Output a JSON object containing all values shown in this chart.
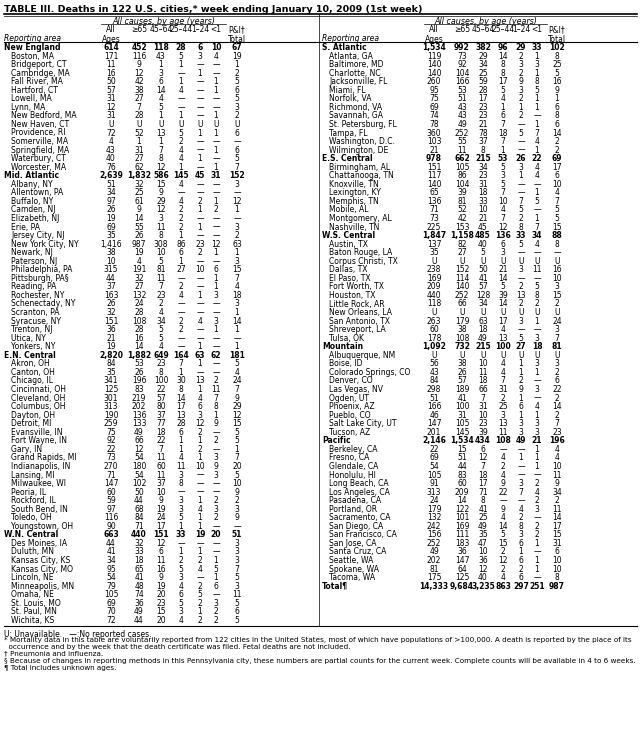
{
  "title": "TABLE III. Deaths in 122 U.S. cities,* week ending January 10, 2009 (1st week)",
  "footnotes": [
    "U: Unavailable.   —:No reported cases.",
    "* Mortality data in this table are voluntarily reported from 122 cities in the United States, most of which have populations of >100,000. A death is reported by the place of its",
    "  occurrence and by the week that the death certificate was filed. Fetal deaths are not included.",
    "† Pneumonia and influenza.",
    "§ Because of changes in reporting methods in this Pennsylvania city, these numbers are partial counts for the current week. Complete counts will be available in 4 to 6 weeks.",
    "¶ Total includes unknown ages."
  ],
  "left_data": [
    [
      "New England",
      "614",
      "452",
      "118",
      "28",
      "6",
      "10",
      "67",
      true
    ],
    [
      "Boston, MA",
      "171",
      "116",
      "43",
      "5",
      "3",
      "4",
      "19",
      false
    ],
    [
      "Bridgeport, CT",
      "11",
      "9",
      "1",
      "1",
      "—",
      "—",
      "1",
      false
    ],
    [
      "Cambridge, MA",
      "16",
      "12",
      "3",
      "—",
      "1",
      "—",
      "2",
      false
    ],
    [
      "Fall River, MA",
      "50",
      "42",
      "6",
      "1",
      "—",
      "1",
      "5",
      false
    ],
    [
      "Hartford, CT",
      "57",
      "38",
      "14",
      "4",
      "—",
      "1",
      "6",
      false
    ],
    [
      "Lowell, MA",
      "31",
      "27",
      "4",
      "—",
      "—",
      "—",
      "5",
      false
    ],
    [
      "Lynn, MA",
      "12",
      "7",
      "5",
      "—",
      "—",
      "—",
      "3",
      false
    ],
    [
      "New Bedford, MA",
      "31",
      "28",
      "1",
      "1",
      "—",
      "1",
      "2",
      false
    ],
    [
      "New Haven, CT",
      "U",
      "U",
      "U",
      "U",
      "U",
      "U",
      "U",
      false
    ],
    [
      "Providence, RI",
      "72",
      "52",
      "13",
      "5",
      "1",
      "1",
      "6",
      false
    ],
    [
      "Somerville, MA",
      "4",
      "1",
      "1",
      "2",
      "—",
      "—",
      "—",
      false
    ],
    [
      "Springfield, MA",
      "43",
      "31",
      "7",
      "4",
      "—",
      "1",
      "6",
      false
    ],
    [
      "Waterbury, CT",
      "40",
      "27",
      "8",
      "4",
      "1",
      "—",
      "5",
      false
    ],
    [
      "Worcester, MA",
      "76",
      "62",
      "12",
      "1",
      "—",
      "1",
      "7",
      false
    ],
    [
      "Mid. Atlantic",
      "2,639",
      "1,832",
      "586",
      "145",
      "45",
      "31",
      "152",
      true
    ],
    [
      "Albany, NY",
      "51",
      "32",
      "15",
      "4",
      "—",
      "—",
      "3",
      false
    ],
    [
      "Allentown, PA",
      "34",
      "25",
      "9",
      "—",
      "—",
      "—",
      "—",
      false
    ],
    [
      "Buffalo, NY",
      "97",
      "61",
      "29",
      "4",
      "2",
      "1",
      "12",
      false
    ],
    [
      "Camden, NJ",
      "26",
      "9",
      "12",
      "2",
      "1",
      "2",
      "1",
      false
    ],
    [
      "Elizabeth, NJ",
      "19",
      "14",
      "3",
      "2",
      "—",
      "—",
      "—",
      false
    ],
    [
      "Erie, PA",
      "69",
      "55",
      "11",
      "2",
      "1",
      "—",
      "3",
      false
    ],
    [
      "Jersey City, NJ",
      "35",
      "26",
      "8",
      "1",
      "—",
      "—",
      "2",
      false
    ],
    [
      "New York City, NY",
      "1,416",
      "987",
      "308",
      "86",
      "23",
      "12",
      "63",
      false
    ],
    [
      "Newark, NJ",
      "38",
      "19",
      "10",
      "6",
      "2",
      "1",
      "1",
      false
    ],
    [
      "Paterson, NJ",
      "10",
      "4",
      "5",
      "1",
      "—",
      "—",
      "3",
      false
    ],
    [
      "Philadelphia, PA",
      "315",
      "191",
      "81",
      "27",
      "10",
      "6",
      "15",
      false
    ],
    [
      "Pittsburgh, PA§",
      "44",
      "32",
      "11",
      "—",
      "—",
      "1",
      "7",
      false
    ],
    [
      "Reading, PA",
      "37",
      "27",
      "7",
      "2",
      "—",
      "1",
      "4",
      false
    ],
    [
      "Rochester, NY",
      "163",
      "132",
      "23",
      "4",
      "1",
      "3",
      "18",
      false
    ],
    [
      "Schenectady, NY",
      "26",
      "24",
      "2",
      "—",
      "—",
      "—",
      "3",
      false
    ],
    [
      "Scranton, PA",
      "32",
      "28",
      "4",
      "—",
      "—",
      "—",
      "1",
      false
    ],
    [
      "Syracuse, NY",
      "151",
      "108",
      "34",
      "2",
      "4",
      "3",
      "14",
      false
    ],
    [
      "Trenton, NJ",
      "36",
      "28",
      "5",
      "2",
      "—",
      "1",
      "1",
      false
    ],
    [
      "Utica, NY",
      "21",
      "16",
      "5",
      "—",
      "—",
      "—",
      "—",
      false
    ],
    [
      "Yonkers, NY",
      "19",
      "14",
      "4",
      "—",
      "1",
      "—",
      "1",
      false
    ],
    [
      "E.N. Central",
      "2,820",
      "1,882",
      "649",
      "164",
      "63",
      "62",
      "181",
      true
    ],
    [
      "Akron, OH",
      "84",
      "53",
      "23",
      "7",
      "1",
      "—",
      "5",
      false
    ],
    [
      "Canton, OH",
      "35",
      "26",
      "8",
      "1",
      "—",
      "—",
      "4",
      false
    ],
    [
      "Chicago, IL",
      "341",
      "196",
      "100",
      "30",
      "13",
      "2",
      "24",
      false
    ],
    [
      "Cincinnati, OH",
      "125",
      "83",
      "22",
      "8",
      "1",
      "11",
      "7",
      false
    ],
    [
      "Cleveland, OH",
      "301",
      "219",
      "57",
      "14",
      "4",
      "7",
      "9",
      false
    ],
    [
      "Columbus, OH",
      "313",
      "202",
      "80",
      "17",
      "6",
      "8",
      "29",
      false
    ],
    [
      "Dayton, OH",
      "190",
      "136",
      "37",
      "13",
      "3",
      "1",
      "12",
      false
    ],
    [
      "Detroit, MI",
      "259",
      "133",
      "77",
      "28",
      "12",
      "9",
      "15",
      false
    ],
    [
      "Evansville, IN",
      "75",
      "49",
      "18",
      "6",
      "2",
      "—",
      "5",
      false
    ],
    [
      "Fort Wayne, IN",
      "92",
      "66",
      "22",
      "1",
      "1",
      "2",
      "5",
      false
    ],
    [
      "Gary, IN",
      "22",
      "12",
      "7",
      "1",
      "2",
      "—",
      "1",
      false
    ],
    [
      "Grand Rapids, MI",
      "73",
      "54",
      "11",
      "4",
      "1",
      "3",
      "7",
      false
    ],
    [
      "Indianapolis, IN",
      "270",
      "180",
      "60",
      "11",
      "10",
      "9",
      "20",
      false
    ],
    [
      "Lansing, MI",
      "71",
      "54",
      "11",
      "3",
      "—",
      "3",
      "5",
      false
    ],
    [
      "Milwaukee, WI",
      "147",
      "102",
      "37",
      "8",
      "—",
      "—",
      "10",
      false
    ],
    [
      "Peoria, IL",
      "60",
      "50",
      "10",
      "—",
      "—",
      "—",
      "9",
      false
    ],
    [
      "Rockford, IL",
      "59",
      "44",
      "9",
      "3",
      "1",
      "2",
      "2",
      false
    ],
    [
      "South Bend, IN",
      "97",
      "68",
      "19",
      "3",
      "4",
      "3",
      "3",
      false
    ],
    [
      "Toledo, OH",
      "116",
      "84",
      "24",
      "5",
      "1",
      "2",
      "9",
      false
    ],
    [
      "Youngstown, OH",
      "90",
      "71",
      "17",
      "1",
      "1",
      "—",
      "—",
      false
    ],
    [
      "W.N. Central",
      "663",
      "440",
      "151",
      "33",
      "19",
      "20",
      "51",
      true
    ],
    [
      "Des Moines, IA",
      "44",
      "32",
      "12",
      "—",
      "—",
      "—",
      "3",
      false
    ],
    [
      "Duluth, MN",
      "41",
      "33",
      "6",
      "1",
      "1",
      "—",
      "3",
      false
    ],
    [
      "Kansas City, KS",
      "34",
      "18",
      "11",
      "2",
      "2",
      "1",
      "3",
      false
    ],
    [
      "Kansas City, MO",
      "95",
      "65",
      "16",
      "5",
      "4",
      "5",
      "7",
      false
    ],
    [
      "Lincoln, NE",
      "54",
      "41",
      "9",
      "3",
      "—",
      "1",
      "5",
      false
    ],
    [
      "Minneapolis, MN",
      "79",
      "48",
      "19",
      "4",
      "2",
      "6",
      "3",
      false
    ],
    [
      "Omaha, NE",
      "105",
      "74",
      "20",
      "6",
      "5",
      "—",
      "11",
      false
    ],
    [
      "St. Louis, MO",
      "69",
      "36",
      "23",
      "5",
      "2",
      "3",
      "5",
      false
    ],
    [
      "St. Paul, MN",
      "70",
      "49",
      "15",
      "3",
      "1",
      "2",
      "6",
      false
    ],
    [
      "Wichita, KS",
      "72",
      "44",
      "20",
      "4",
      "2",
      "2",
      "5",
      false
    ]
  ],
  "right_data": [
    [
      "S. Atlantic",
      "1,534",
      "992",
      "382",
      "96",
      "29",
      "33",
      "102",
      true
    ],
    [
      "Atlanta, GA",
      "119",
      "73",
      "29",
      "14",
      "2",
      "1",
      "8",
      false
    ],
    [
      "Baltimore, MD",
      "140",
      "92",
      "34",
      "8",
      "3",
      "3",
      "25",
      false
    ],
    [
      "Charlotte, NC",
      "140",
      "104",
      "25",
      "8",
      "2",
      "1",
      "5",
      false
    ],
    [
      "Jacksonville, FL",
      "260",
      "166",
      "59",
      "17",
      "9",
      "8",
      "16",
      false
    ],
    [
      "Miami, FL",
      "95",
      "53",
      "28",
      "5",
      "3",
      "5",
      "9",
      false
    ],
    [
      "Norfolk, VA",
      "75",
      "51",
      "17",
      "4",
      "2",
      "1",
      "1",
      false
    ],
    [
      "Richmond, VA",
      "69",
      "43",
      "23",
      "1",
      "1",
      "1",
      "6",
      false
    ],
    [
      "Savannah, GA",
      "74",
      "43",
      "23",
      "6",
      "2",
      "—",
      "8",
      false
    ],
    [
      "St. Petersburg, FL",
      "78",
      "49",
      "21",
      "7",
      "—",
      "1",
      "6",
      false
    ],
    [
      "Tampa, FL",
      "360",
      "252",
      "78",
      "18",
      "5",
      "7",
      "14",
      false
    ],
    [
      "Washington, D.C.",
      "103",
      "55",
      "37",
      "7",
      "—",
      "4",
      "2",
      false
    ],
    [
      "Wilmington, DE",
      "21",
      "11",
      "8",
      "1",
      "—",
      "1",
      "2",
      false
    ],
    [
      "E.S. Central",
      "978",
      "662",
      "215",
      "53",
      "26",
      "22",
      "69",
      true
    ],
    [
      "Birmingham, AL",
      "151",
      "105",
      "34",
      "5",
      "3",
      "4",
      "17",
      false
    ],
    [
      "Chattanooga, TN",
      "117",
      "86",
      "23",
      "3",
      "1",
      "4",
      "6",
      false
    ],
    [
      "Knoxville, TN",
      "140",
      "104",
      "31",
      "5",
      "—",
      "—",
      "10",
      false
    ],
    [
      "Lexington, KY",
      "65",
      "39",
      "18",
      "7",
      "—",
      "1",
      "4",
      false
    ],
    [
      "Memphis, TN",
      "136",
      "81",
      "33",
      "10",
      "7",
      "5",
      "7",
      false
    ],
    [
      "Mobile, AL",
      "71",
      "52",
      "10",
      "4",
      "5",
      "—",
      "5",
      false
    ],
    [
      "Montgomery, AL",
      "73",
      "42",
      "21",
      "7",
      "2",
      "1",
      "5",
      false
    ],
    [
      "Nashville, TN",
      "225",
      "153",
      "45",
      "12",
      "8",
      "7",
      "15",
      false
    ],
    [
      "W.S. Central",
      "1,847",
      "1,158",
      "485",
      "136",
      "33",
      "34",
      "88",
      true
    ],
    [
      "Austin, TX",
      "137",
      "82",
      "40",
      "6",
      "5",
      "4",
      "8",
      false
    ],
    [
      "Baton Rouge, LA",
      "35",
      "27",
      "5",
      "3",
      "—",
      "—",
      "—",
      false
    ],
    [
      "Corpus Christi, TX",
      "U",
      "U",
      "U",
      "U",
      "U",
      "U",
      "U",
      false
    ],
    [
      "Dallas, TX",
      "238",
      "152",
      "50",
      "21",
      "3",
      "11",
      "16",
      false
    ],
    [
      "El Paso, TX",
      "169",
      "114",
      "41",
      "14",
      "—",
      "—",
      "10",
      false
    ],
    [
      "Fort Worth, TX",
      "209",
      "140",
      "57",
      "5",
      "2",
      "5",
      "3",
      false
    ],
    [
      "Houston, TX",
      "440",
      "252",
      "128",
      "39",
      "13",
      "8",
      "15",
      false
    ],
    [
      "Little Rock, AR",
      "118",
      "66",
      "34",
      "14",
      "2",
      "2",
      "2",
      false
    ],
    [
      "New Orleans, LA",
      "U",
      "U",
      "U",
      "U",
      "U",
      "U",
      "U",
      false
    ],
    [
      "San Antonio, TX",
      "263",
      "179",
      "63",
      "17",
      "3",
      "1",
      "24",
      false
    ],
    [
      "Shreveport, LA",
      "60",
      "38",
      "18",
      "4",
      "—",
      "—",
      "3",
      false
    ],
    [
      "Tulsa, OK",
      "178",
      "108",
      "49",
      "13",
      "5",
      "3",
      "7",
      false
    ],
    [
      "Mountain",
      "1,092",
      "732",
      "215",
      "100",
      "27",
      "18",
      "81",
      true
    ],
    [
      "Albuquerque, NM",
      "U",
      "U",
      "U",
      "U",
      "U",
      "U",
      "U",
      false
    ],
    [
      "Boise, ID",
      "56",
      "38",
      "10",
      "4",
      "1",
      "3",
      "3",
      false
    ],
    [
      "Colorado Springs, CO",
      "43",
      "26",
      "11",
      "4",
      "1",
      "1",
      "2",
      false
    ],
    [
      "Denver, CO",
      "84",
      "57",
      "18",
      "7",
      "2",
      "—",
      "6",
      false
    ],
    [
      "Las Vegas, NV",
      "298",
      "189",
      "66",
      "31",
      "9",
      "3",
      "22",
      false
    ],
    [
      "Ogden, UT",
      "51",
      "41",
      "7",
      "2",
      "1",
      "—",
      "2",
      false
    ],
    [
      "Phoenix, AZ",
      "166",
      "100",
      "31",
      "25",
      "6",
      "4",
      "14",
      false
    ],
    [
      "Pueblo, CO",
      "46",
      "31",
      "10",
      "3",
      "1",
      "1",
      "2",
      false
    ],
    [
      "Salt Lake City, UT",
      "147",
      "105",
      "23",
      "13",
      "3",
      "3",
      "7",
      false
    ],
    [
      "Tucson, AZ",
      "201",
      "145",
      "39",
      "11",
      "3",
      "3",
      "23",
      false
    ],
    [
      "Pacific",
      "2,146",
      "1,534",
      "434",
      "108",
      "49",
      "21",
      "196",
      true
    ],
    [
      "Berkeley, CA",
      "22",
      "15",
      "6",
      "—",
      "—",
      "1",
      "4",
      false
    ],
    [
      "Fresno, CA",
      "69",
      "51",
      "12",
      "4",
      "1",
      "1",
      "4",
      false
    ],
    [
      "Glendale, CA",
      "54",
      "44",
      "7",
      "2",
      "—",
      "1",
      "10",
      false
    ],
    [
      "Honolulu, HI",
      "105",
      "83",
      "18",
      "4",
      "—",
      "—",
      "11",
      false
    ],
    [
      "Long Beach, CA",
      "91",
      "60",
      "17",
      "9",
      "3",
      "2",
      "9",
      false
    ],
    [
      "Los Angeles, CA",
      "313",
      "209",
      "71",
      "22",
      "7",
      "4",
      "34",
      false
    ],
    [
      "Pasadena, CA",
      "24",
      "14",
      "8",
      "—",
      "—",
      "2",
      "2",
      false
    ],
    [
      "Portland, OR",
      "179",
      "122",
      "41",
      "9",
      "4",
      "3",
      "11",
      false
    ],
    [
      "Sacramento, CA",
      "132",
      "101",
      "25",
      "4",
      "2",
      "—",
      "14",
      false
    ],
    [
      "San Diego, CA",
      "242",
      "169",
      "49",
      "14",
      "8",
      "2",
      "17",
      false
    ],
    [
      "San Francisco, CA",
      "156",
      "111",
      "35",
      "5",
      "3",
      "2",
      "15",
      false
    ],
    [
      "San Jose, CA",
      "252",
      "183",
      "47",
      "15",
      "6",
      "1",
      "31",
      false
    ],
    [
      "Santa Cruz, CA",
      "49",
      "36",
      "10",
      "2",
      "1",
      "—",
      "6",
      false
    ],
    [
      "Seattle, WA",
      "202",
      "147",
      "36",
      "12",
      "6",
      "1",
      "10",
      false
    ],
    [
      "Spokane, WA",
      "81",
      "64",
      "12",
      "2",
      "2",
      "1",
      "10",
      false
    ],
    [
      "Tacoma, WA",
      "175",
      "125",
      "40",
      "4",
      "6",
      "—",
      "8",
      false
    ],
    [
      "Total¶",
      "14,333",
      "9,684",
      "3,235",
      "863",
      "297",
      "251",
      "987",
      true
    ]
  ]
}
